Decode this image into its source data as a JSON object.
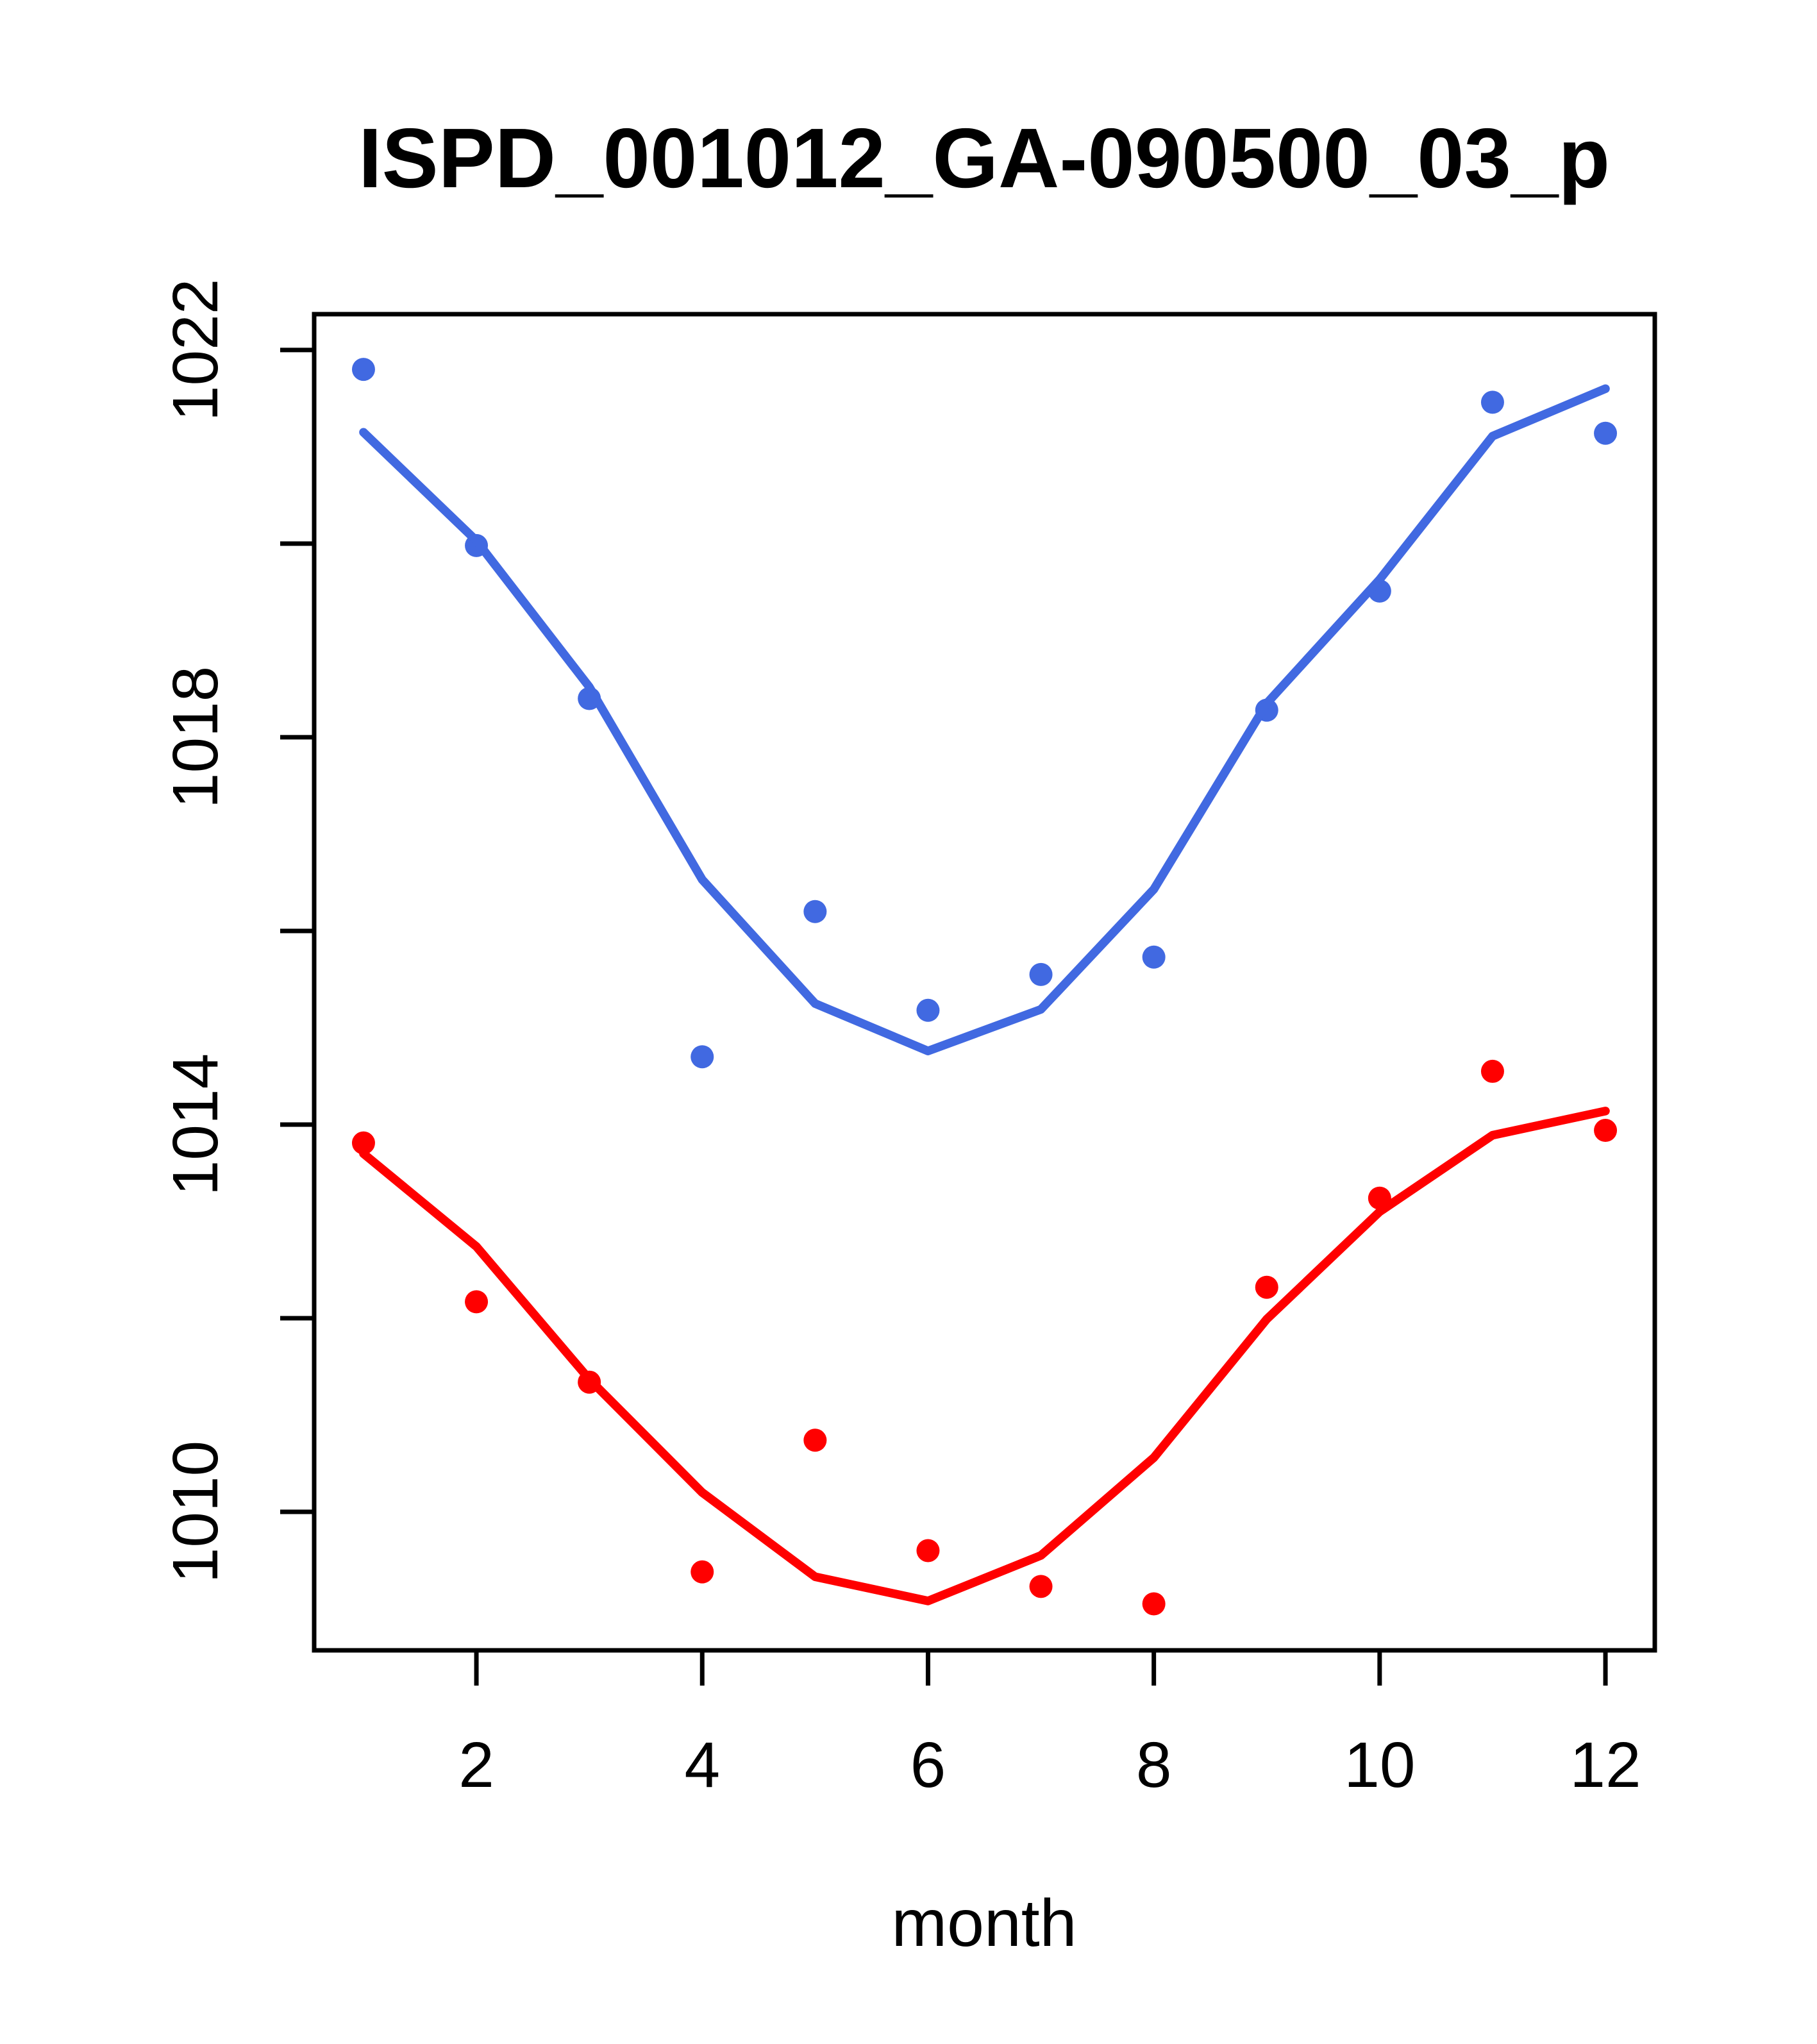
{
  "page": {
    "background": "#ffffff",
    "frame_color": "#000000",
    "text_color": "#000000"
  },
  "chart_data": {
    "type": "scatter",
    "title": "ISPD_001012_GA-090500_03_p",
    "xlabel": "month",
    "ylabel": "",
    "grid": "off",
    "legend": "none",
    "x": [
      1,
      2,
      3,
      4,
      5,
      6,
      7,
      8,
      9,
      10,
      11,
      12
    ],
    "xlim": [
      0.563,
      12.437
    ],
    "ylim": [
      1008.57,
      1022.37
    ],
    "xticks": {
      "values": [
        2,
        4,
        6,
        8,
        10,
        12
      ],
      "labels": [
        "2",
        "4",
        "6",
        "8",
        "10",
        "12"
      ]
    },
    "yticks": {
      "labeled_values": [
        1010,
        1014,
        1018,
        1022
      ],
      "labels": [
        "1010",
        "1014",
        "1018",
        "1022"
      ],
      "minor_values": [
        1012,
        1016,
        1020
      ]
    },
    "series": [
      {
        "name": "blue-observed-points",
        "kind": "points",
        "color": "#4169E1",
        "values": [
          1021.8,
          1019.98,
          1018.4,
          1014.7,
          1016.2,
          1015.18,
          1015.55,
          1015.73,
          1018.28,
          1019.51,
          1021.46,
          1021.14
        ]
      },
      {
        "name": "blue-fitted-line",
        "kind": "line",
        "color": "#4169E1",
        "values": [
          1021.15,
          1020.03,
          1018.52,
          1016.53,
          1015.25,
          1014.76,
          1015.19,
          1016.43,
          1018.35,
          1019.63,
          1021.11,
          1021.6
        ]
      },
      {
        "name": "red-observed-points",
        "kind": "points",
        "color": "#FF0000",
        "values": [
          1013.81,
          1012.17,
          1011.34,
          1009.38,
          1010.74,
          1009.6,
          1009.23,
          1009.05,
          1012.32,
          1013.24,
          1014.55,
          1013.94
        ]
      },
      {
        "name": "red-fitted-line",
        "kind": "line",
        "color": "#FF0000",
        "values": [
          1013.7,
          1012.74,
          1011.37,
          1010.2,
          1009.33,
          1009.08,
          1009.55,
          1010.56,
          1011.99,
          1013.1,
          1013.89,
          1014.14
        ]
      }
    ]
  }
}
